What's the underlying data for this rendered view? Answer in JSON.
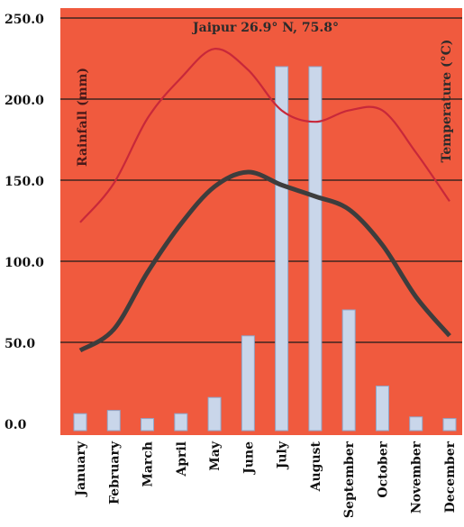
{
  "chart_data": {
    "type": "bar",
    "title": "Jaipur 26.9° N, 75.8°",
    "ylabel": "Rainfall (mm)",
    "y2label": "Temperature (°C)",
    "ylim": [
      0,
      250
    ],
    "ytick_labels": [
      "0.0",
      "50.0",
      "100.0",
      "150.0",
      "200.0",
      "250.0"
    ],
    "ytick_values": [
      0,
      50,
      100,
      150,
      200,
      250
    ],
    "grid": true,
    "categories": [
      "January",
      "February",
      "March",
      "April",
      "May",
      "June",
      "July",
      "August",
      "September",
      "October",
      "November",
      "December"
    ],
    "series": [
      {
        "type": "bar",
        "values": [
          6,
          8,
          3,
          6,
          16,
          54,
          220,
          220,
          70,
          23,
          4,
          3
        ]
      },
      {
        "type": "line",
        "values": [
          124,
          148,
          188,
          213,
          231,
          218,
          193,
          186,
          193,
          193,
          167,
          137
        ]
      },
      {
        "type": "line",
        "values": [
          45,
          58,
          93,
          123,
          146,
          155,
          147,
          140,
          132,
          110,
          78,
          54
        ]
      }
    ],
    "colors": {
      "background": "#f05a3e",
      "bar": "#c9d6ea",
      "bar_stroke": "#8fa6c9",
      "line_high": "#c8283a",
      "line_low": "#3d3d3d",
      "grid": "#1a1a1a"
    }
  }
}
